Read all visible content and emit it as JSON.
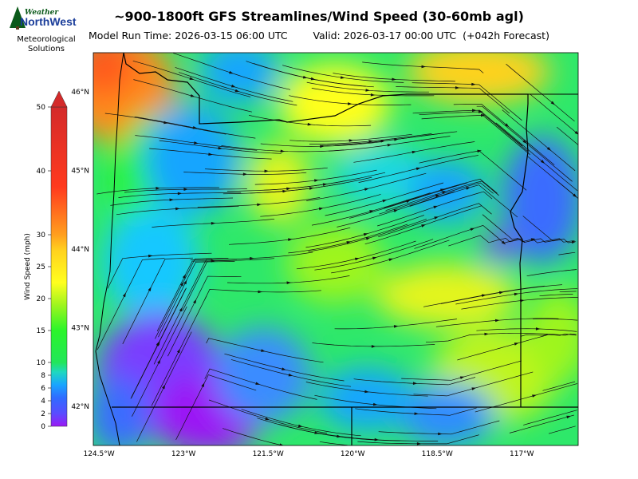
{
  "logo": {
    "top_text": "Weather",
    "brand_text": "NorthWest",
    "caption": [
      "Meteorological",
      "Solutions"
    ]
  },
  "header": {
    "title": "~900-1800ft GFS Streamlines/Wind Speed (30-60mb agl)",
    "run_time": "Model Run Time: 2026-03-15 06:00 UTC",
    "valid_time": "Valid: 2026-03-17 00:00 UTC  (+042h Forecast)"
  },
  "chart_data": {
    "type": "heatmap",
    "title": "~900-1800ft GFS Streamlines/Wind Speed (30-60mb agl)",
    "colorbar": {
      "label": "Wind Speed (mph)",
      "ticks": [
        0,
        2,
        4,
        6,
        8,
        10,
        15,
        20,
        25,
        30,
        40,
        50
      ],
      "range": [
        0,
        50
      ],
      "extend": "max",
      "colors": [
        "#9b19f5",
        "#3b6cff",
        "#19b3ff",
        "#22e68a",
        "#2af52a",
        "#bff51e",
        "#ffff1e",
        "#ffbf1e",
        "#ff7a1e",
        "#ff2a1e",
        "#d42a2a"
      ]
    },
    "x_ticks": [
      "124.5°W",
      "123°W",
      "121.5°W",
      "120°W",
      "118.5°W",
      "117°W"
    ],
    "x_tick_values": [
      -124.5,
      -123.0,
      -121.5,
      -120.0,
      -118.5,
      -117.0
    ],
    "y_ticks": [
      "46°N",
      "45°N",
      "44°N",
      "43°N",
      "42°N"
    ],
    "y_tick_values": [
      46,
      45,
      44,
      43,
      42
    ],
    "lon_range": [
      -124.6,
      -116.0
    ],
    "lat_range": [
      41.5,
      46.5
    ],
    "field_notes": [
      {
        "region": "northwest coast",
        "speed_mph": 30
      },
      {
        "region": "north-central near 120.5°W 46°N",
        "speed_mph": 28
      },
      {
        "region": "southwest interior",
        "speed_mph": 2
      },
      {
        "region": "southeast near 118°W 42.5°N",
        "speed_mph": 20
      },
      {
        "region": "east near 117.5°W 44°N",
        "speed_mph": 4
      }
    ]
  }
}
